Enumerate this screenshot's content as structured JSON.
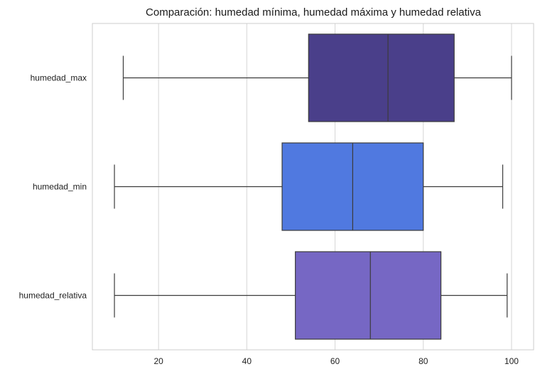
{
  "chart_data": {
    "type": "boxplot",
    "orientation": "horizontal",
    "title": "Comparación: humedad mínima, humedad máxima y humedad relativa",
    "xlabel": "",
    "ylabel": "",
    "xlim": [
      5,
      105
    ],
    "xticks": [
      20,
      40,
      60,
      80,
      100
    ],
    "grid": "vertical",
    "categories": [
      "humedad_max",
      "humedad_min",
      "humedad_relativa"
    ],
    "boxes": [
      {
        "category": "humedad_max",
        "whisker_low": 12,
        "q1": 54,
        "median": 72,
        "q3": 87,
        "whisker_high": 100,
        "color": "#4a3f8a"
      },
      {
        "category": "humedad_min",
        "whisker_low": 10,
        "q1": 48,
        "median": 64,
        "q3": 80,
        "whisker_high": 98,
        "color": "#5079e0"
      },
      {
        "category": "humedad_relativa",
        "whisker_low": 10,
        "q1": 51,
        "median": 68,
        "q3": 84,
        "whisker_high": 99,
        "color": "#7667c4"
      }
    ]
  }
}
